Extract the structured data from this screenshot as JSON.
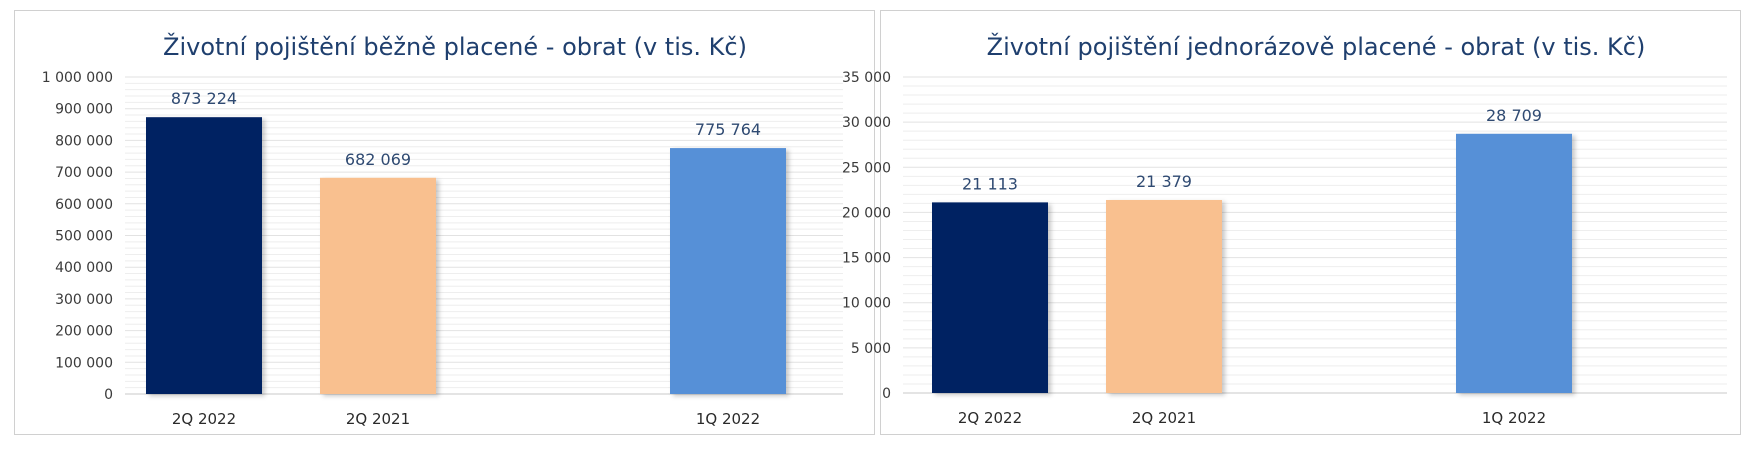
{
  "chart_data": [
    {
      "type": "bar",
      "title": "Životní pojištění běžně placené - obrat (v tis. Kč)",
      "xlabel": "",
      "ylabel": "",
      "categories": [
        "2Q 2022",
        "2Q 2021",
        "1Q 2022"
      ],
      "values": [
        873224,
        682069,
        775764
      ],
      "value_labels": [
        "873 224",
        "682 069",
        "775 764"
      ],
      "bar_colors": [
        "#022162",
        "#f9c08f",
        "#5690d7"
      ],
      "ylim": [
        0,
        1000000
      ],
      "ytick_step": 100000,
      "ytick_labels": [
        "0",
        "100 000",
        "200 000",
        "300 000",
        "400 000",
        "500 000",
        "600 000",
        "700 000",
        "800 000",
        "900 000",
        "1 000 000"
      ],
      "grid": true,
      "legend": "none"
    },
    {
      "type": "bar",
      "title": "Životní pojištění jednorázově placené - obrat (v tis. Kč)",
      "xlabel": "",
      "ylabel": "",
      "categories": [
        "2Q 2022",
        "2Q 2021",
        "1Q 2022"
      ],
      "values": [
        21113,
        21379,
        28709
      ],
      "value_labels": [
        "21 113",
        "21 379",
        "28 709"
      ],
      "bar_colors": [
        "#022162",
        "#f9c08f",
        "#5690d7"
      ],
      "ylim": [
        0,
        35000
      ],
      "ytick_step": 5000,
      "ytick_labels": [
        "0",
        "5 000",
        "10 000",
        "15 000",
        "20 000",
        "25 000",
        "30 000",
        "35 000"
      ],
      "grid": true,
      "legend": "none"
    }
  ]
}
